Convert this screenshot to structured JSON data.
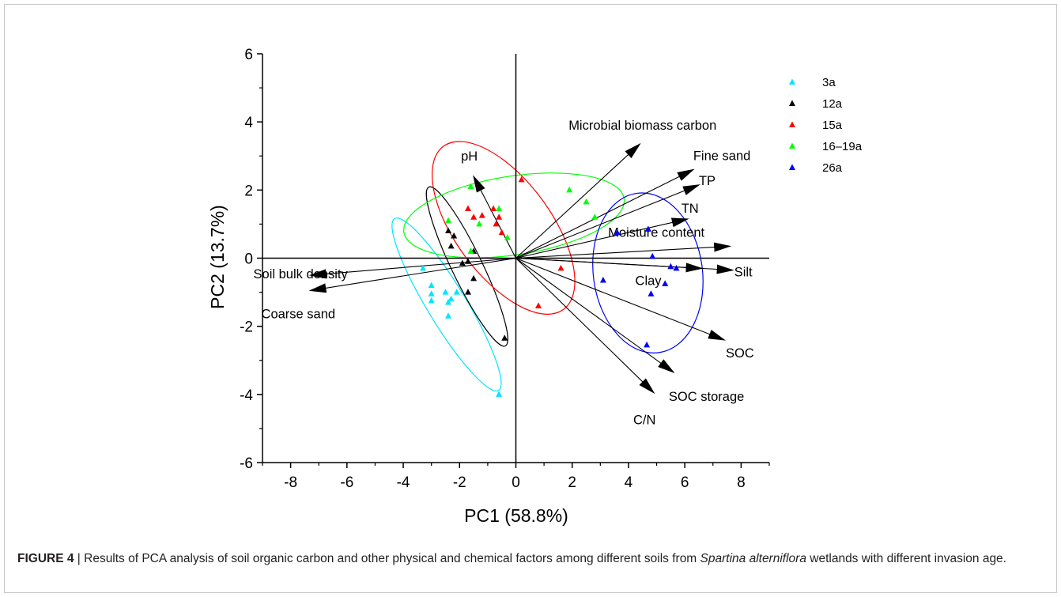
{
  "chart_data": {
    "type": "scatter",
    "xlabel": "PC1 (58.8%)",
    "ylabel": "PC2 (13.7%)",
    "xlim": [
      -9,
      9
    ],
    "ylim": [
      -6,
      6
    ],
    "xticks": [
      -8,
      -6,
      -4,
      -2,
      0,
      2,
      4,
      6,
      8
    ],
    "yticks": [
      -6,
      -4,
      -2,
      0,
      2,
      4,
      6
    ],
    "grid": false,
    "legend_position": "top-right",
    "series": [
      {
        "name": "3a",
        "color": "#00e5ff",
        "points": [
          [
            -3.3,
            -0.3
          ],
          [
            -3.0,
            -0.8
          ],
          [
            -3.0,
            -1.05
          ],
          [
            -3.0,
            -1.25
          ],
          [
            -2.5,
            -1.0
          ],
          [
            -2.4,
            -1.3
          ],
          [
            -2.3,
            -1.2
          ],
          [
            -2.1,
            -1.0
          ],
          [
            -2.4,
            -1.7
          ],
          [
            -0.6,
            -4.0
          ]
        ]
      },
      {
        "name": "12a",
        "color": "#000000",
        "points": [
          [
            -2.4,
            0.8
          ],
          [
            -2.3,
            0.35
          ],
          [
            -2.2,
            0.65
          ],
          [
            -1.9,
            -0.15
          ],
          [
            -1.7,
            -0.1
          ],
          [
            -1.5,
            0.2
          ],
          [
            -1.5,
            -0.6
          ],
          [
            -1.7,
            -1.0
          ],
          [
            -0.4,
            -2.35
          ]
        ]
      },
      {
        "name": "15a",
        "color": "#ff0000",
        "points": [
          [
            -1.7,
            1.45
          ],
          [
            -1.5,
            1.2
          ],
          [
            -1.2,
            1.25
          ],
          [
            -0.8,
            1.45
          ],
          [
            -0.6,
            1.2
          ],
          [
            -0.7,
            1.0
          ],
          [
            -0.5,
            0.75
          ],
          [
            0.2,
            2.3
          ],
          [
            1.6,
            -0.3
          ],
          [
            0.8,
            -1.4
          ]
        ]
      },
      {
        "name": "16–19a",
        "color": "#00ff00",
        "points": [
          [
            -1.6,
            2.1
          ],
          [
            -2.4,
            1.1
          ],
          [
            -1.3,
            1.0
          ],
          [
            -0.6,
            1.45
          ],
          [
            -0.3,
            0.6
          ],
          [
            -1.6,
            0.2
          ],
          [
            1.9,
            2.0
          ],
          [
            2.5,
            1.65
          ],
          [
            2.8,
            1.2
          ]
        ]
      },
      {
        "name": "26a",
        "color": "#0000ff",
        "points": [
          [
            3.6,
            0.75
          ],
          [
            4.7,
            0.85
          ],
          [
            4.85,
            0.05
          ],
          [
            5.5,
            -0.25
          ],
          [
            5.7,
            -0.3
          ],
          [
            5.3,
            -0.75
          ],
          [
            4.8,
            -1.05
          ],
          [
            3.1,
            -0.65
          ],
          [
            4.65,
            -2.55
          ]
        ]
      }
    ],
    "vectors": [
      {
        "label": "Soil bulk density",
        "x": -7.3,
        "y": -0.5
      },
      {
        "label": "Coarse sand",
        "x": -7.3,
        "y": -0.95
      },
      {
        "label": "pH",
        "x": -1.5,
        "y": 2.4
      },
      {
        "label": "Microbial biomass carbon",
        "x": 4.4,
        "y": 3.35
      },
      {
        "label": "Fine sand",
        "x": 6.3,
        "y": 2.6
      },
      {
        "label": "TP",
        "x": 6.5,
        "y": 2.15
      },
      {
        "label": "TN",
        "x": 6.1,
        "y": 1.15
      },
      {
        "label": "Moisture content",
        "x": 7.6,
        "y": 0.35
      },
      {
        "label": "Silt",
        "x": 7.7,
        "y": -0.35
      },
      {
        "label": "Clay",
        "x": 6.6,
        "y": -0.3
      },
      {
        "label": "SOC",
        "x": 7.4,
        "y": -2.4
      },
      {
        "label": "SOC storage",
        "x": 5.6,
        "y": -3.35
      },
      {
        "label": "C/N",
        "x": 4.9,
        "y": -3.95
      }
    ]
  },
  "caption": {
    "label": "FIGURE 4",
    "separator": " | ",
    "text_before": "Results of PCA analysis of soil organic carbon and other physical and chemical factors among different soils from ",
    "species": "Spartina alterniflora",
    "text_after": " wetlands with different invasion age."
  }
}
